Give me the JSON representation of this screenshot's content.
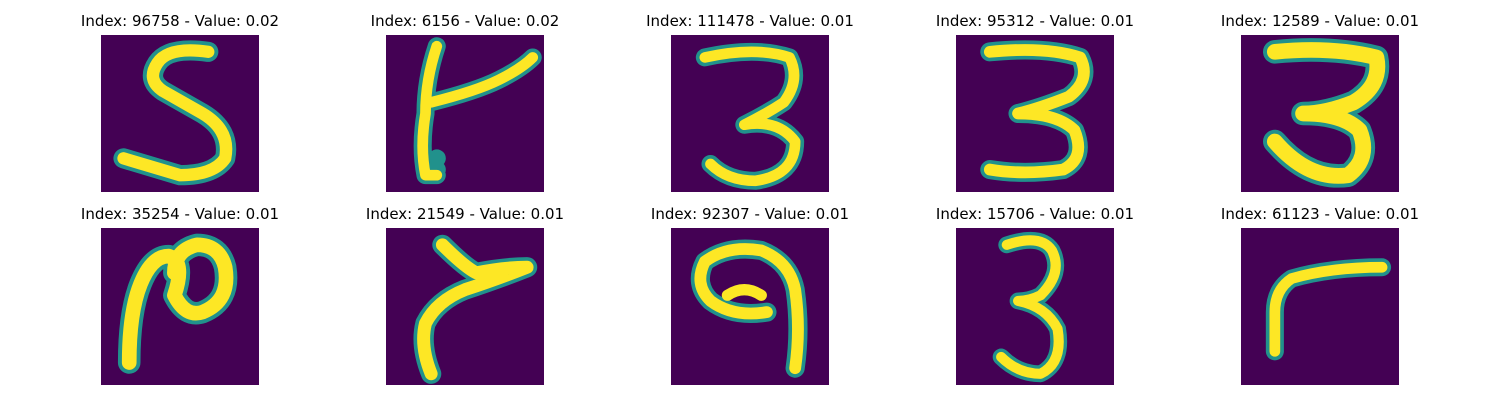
{
  "colors": {
    "background": "#440154",
    "mid": "#21918c",
    "stroke": "#fde725",
    "edge": "#5ec962"
  },
  "panels": [
    {
      "title": "Index: 96758 - Value: 0.02",
      "digit_shape": "five"
    },
    {
      "title": "Index: 6156 - Value: 0.02",
      "digit_shape": "four"
    },
    {
      "title": "Index: 111478 - Value: 0.01",
      "digit_shape": "three"
    },
    {
      "title": "Index: 95312 - Value: 0.01",
      "digit_shape": "three"
    },
    {
      "title": "Index: 12589 - Value: 0.01",
      "digit_shape": "three"
    },
    {
      "title": "Index: 35254 - Value: 0.01",
      "digit_shape": "two"
    },
    {
      "title": "Index: 21549 - Value: 0.01",
      "digit_shape": "seven"
    },
    {
      "title": "Index: 92307 - Value: 0.01",
      "digit_shape": "nine"
    },
    {
      "title": "Index: 15706 - Value: 0.01",
      "digit_shape": "three"
    },
    {
      "title": "Index: 61123 - Value: 0.01",
      "digit_shape": "seven"
    }
  ]
}
